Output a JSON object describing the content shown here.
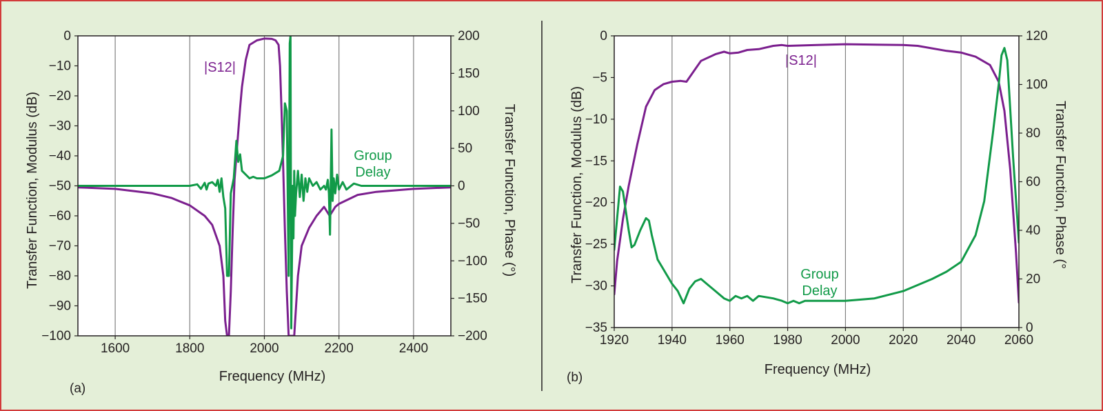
{
  "figure": {
    "colors": {
      "s12": "#7b1f8e",
      "group_delay": "#119a48",
      "frame": "#d23a3a",
      "background": "#e4efd8",
      "plot_bg": "#ffffff",
      "grid": "#7f7f7f"
    }
  },
  "chart_data": [
    {
      "panel_label": "(a)",
      "type": "line",
      "xlabel": "Frequency (MHz)",
      "ylabel_left": "Transfer Function, Modulus (dB)",
      "ylabel_right": "Transfer Function, Phase (°)",
      "xlim": [
        1500,
        2500
      ],
      "ylim_left": [
        -100,
        0
      ],
      "ylim_right": [
        -200,
        200
      ],
      "x_ticks": [
        1600,
        1800,
        2000,
        2200,
        2400
      ],
      "x_tick_labels": [
        "1600",
        "1800",
        "2000",
        "2200",
        "2400"
      ],
      "y_left_ticks": [
        0,
        -10,
        -20,
        -30,
        -40,
        -50,
        -60,
        -70,
        -80,
        -90,
        -100
      ],
      "y_left_tick_labels": [
        "0",
        "−10",
        "−20",
        "−30",
        "−40",
        "−50",
        "−60",
        "−70",
        "−80",
        "−90",
        "−100"
      ],
      "y_right_ticks": [
        200,
        150,
        100,
        50,
        0,
        -50,
        -100,
        -150,
        -200
      ],
      "y_right_tick_labels": [
        "200",
        "150",
        "100",
        "50",
        "0",
        "−50",
        "−100",
        "−150",
        "−200"
      ],
      "grid": "vertical",
      "annotations": {
        "s12": "|S12|",
        "group_delay_line1": "Group",
        "group_delay_line2": "Delay"
      },
      "series": [
        {
          "name": "|S12|",
          "axis": "left",
          "x": [
            1500,
            1600,
            1700,
            1750,
            1800,
            1840,
            1860,
            1880,
            1890,
            1895,
            1900,
            1905,
            1910,
            1915,
            1920,
            1925,
            1930,
            1935,
            1940,
            1950,
            1960,
            1980,
            2000,
            2020,
            2030,
            2038,
            2042,
            2046,
            2050,
            2055,
            2060,
            2065,
            2070,
            2075,
            2080,
            2085,
            2090,
            2095,
            2100,
            2110,
            2120,
            2140,
            2160,
            2175,
            2180,
            2185,
            2190,
            2200,
            2250,
            2300,
            2400,
            2500
          ],
          "values": [
            -50.5,
            -51,
            -52.5,
            -54,
            -56.5,
            -60,
            -63,
            -70,
            -80,
            -95,
            -100,
            -100,
            -85,
            -65,
            -48,
            -40,
            -32,
            -24,
            -17,
            -8,
            -3,
            -1.5,
            -0.9,
            -1,
            -1.5,
            -3,
            -10,
            -25,
            -42,
            -65,
            -85,
            -100,
            -100,
            -100,
            -100,
            -90,
            -80,
            -75,
            -70,
            -67,
            -64,
            -60,
            -57,
            -60,
            -59,
            -58,
            -57,
            -56,
            -53,
            -52,
            -51,
            -50.5
          ]
        },
        {
          "name": "Group Delay",
          "axis": "right",
          "x": [
            1500,
            1600,
            1700,
            1800,
            1820,
            1830,
            1840,
            1845,
            1850,
            1860,
            1870,
            1875,
            1880,
            1885,
            1890,
            1895,
            1900,
            1905,
            1910,
            1918,
            1925,
            1930,
            1935,
            1940,
            1950,
            1960,
            1970,
            1980,
            2000,
            2020,
            2040,
            2050,
            2055,
            2060,
            2065,
            2068,
            2070,
            2072,
            2074,
            2076,
            2078,
            2080,
            2082,
            2085,
            2090,
            2095,
            2100,
            2105,
            2110,
            2115,
            2120,
            2130,
            2140,
            2150,
            2160,
            2165,
            2170,
            2173,
            2176,
            2180,
            2183,
            2186,
            2190,
            2195,
            2200,
            2210,
            2220,
            2240,
            2260,
            2300,
            2400,
            2500
          ],
          "values": [
            0,
            0,
            0,
            0,
            2,
            -4,
            4,
            -5,
            3,
            5,
            0,
            8,
            -8,
            10,
            -15,
            -30,
            -120,
            -120,
            -10,
            10,
            60,
            32,
            42,
            20,
            15,
            10,
            12,
            10,
            10,
            14,
            20,
            40,
            110,
            100,
            -120,
            190,
            200,
            -190,
            -100,
            0,
            -70,
            20,
            -40,
            -10,
            20,
            -15,
            15,
            -20,
            10,
            -8,
            10,
            0,
            5,
            -5,
            0,
            -5,
            8,
            -10,
            -65,
            75,
            -20,
            10,
            -10,
            15,
            -5,
            5,
            -5,
            3,
            0,
            0,
            0,
            0
          ]
        }
      ]
    },
    {
      "panel_label": "(b)",
      "type": "line",
      "xlabel": "Frequency (MHz)",
      "ylabel_left": "Transfer Function, Modulus (dB)",
      "ylabel_right": "Transfer Function, Phase (°",
      "xlim": [
        1920,
        2060
      ],
      "ylim_left": [
        -35,
        0
      ],
      "ylim_right": [
        0,
        120
      ],
      "x_ticks": [
        1920,
        1940,
        1960,
        1980,
        2000,
        2020,
        2040,
        2060
      ],
      "x_tick_labels": [
        "1920",
        "1940",
        "1960",
        "1980",
        "2000",
        "2020",
        "2040",
        "2060"
      ],
      "y_left_ticks": [
        0,
        -5,
        -10,
        -15,
        -20,
        -25,
        -30,
        -35
      ],
      "y_left_tick_labels": [
        "0",
        "−5",
        "−10",
        "−15",
        "−20",
        "−25",
        "−30",
        "−35"
      ],
      "y_right_ticks": [
        120,
        100,
        80,
        60,
        40,
        20,
        0
      ],
      "y_right_tick_labels": [
        "120",
        "100",
        "80",
        "60",
        "40",
        "20",
        "0"
      ],
      "grid": "vertical",
      "annotations": {
        "s12": "|S12|",
        "group_delay_line1": "Group",
        "group_delay_line2": "Delay"
      },
      "series": [
        {
          "name": "|S12|",
          "axis": "left",
          "x": [
            1920,
            1921,
            1923,
            1925,
            1928,
            1931,
            1934,
            1937,
            1940,
            1943,
            1945,
            1947,
            1950,
            1955,
            1958,
            1960,
            1963,
            1966,
            1970,
            1975,
            1978,
            1980,
            1990,
            2000,
            2020,
            2025,
            2035,
            2040,
            2045,
            2050,
            2053,
            2055,
            2057,
            2059,
            2060
          ],
          "values": [
            -31,
            -27,
            -22,
            -18,
            -13,
            -8.5,
            -6.5,
            -5.8,
            -5.5,
            -5.4,
            -5.5,
            -4.5,
            -3,
            -2.2,
            -1.9,
            -2.1,
            -2,
            -1.7,
            -1.6,
            -1.2,
            -1.1,
            -1.2,
            -1.1,
            -1.0,
            -1.1,
            -1.2,
            -1.8,
            -2.0,
            -2.5,
            -3.5,
            -5.5,
            -9,
            -16,
            -26,
            -32
          ]
        },
        {
          "name": "Group Delay",
          "axis": "right",
          "x": [
            1920,
            1921,
            1922,
            1923,
            1924,
            1925,
            1926,
            1927,
            1929,
            1931,
            1932,
            1933,
            1935,
            1937,
            1940,
            1942,
            1944,
            1946,
            1948,
            1950,
            1953,
            1955,
            1958,
            1960,
            1962,
            1964,
            1966,
            1967,
            1968,
            1970,
            1975,
            1978,
            1980,
            1982,
            1984,
            1986,
            1990,
            2000,
            2010,
            2020,
            2030,
            2035,
            2040,
            2045,
            2048,
            2051,
            2053,
            2054,
            2055,
            2056,
            2058,
            2060
          ],
          "values": [
            32,
            45,
            58,
            56,
            48,
            40,
            33,
            34,
            40,
            45,
            44,
            38,
            28,
            24,
            18,
            15,
            10,
            16,
            19,
            20,
            17,
            15,
            12,
            11,
            13,
            12,
            13,
            12,
            11,
            13,
            12,
            11,
            10,
            11,
            10,
            11,
            11,
            11,
            12,
            15,
            20,
            23,
            27,
            38,
            52,
            80,
            100,
            112,
            115,
            110,
            70,
            35
          ]
        }
      ]
    }
  ]
}
